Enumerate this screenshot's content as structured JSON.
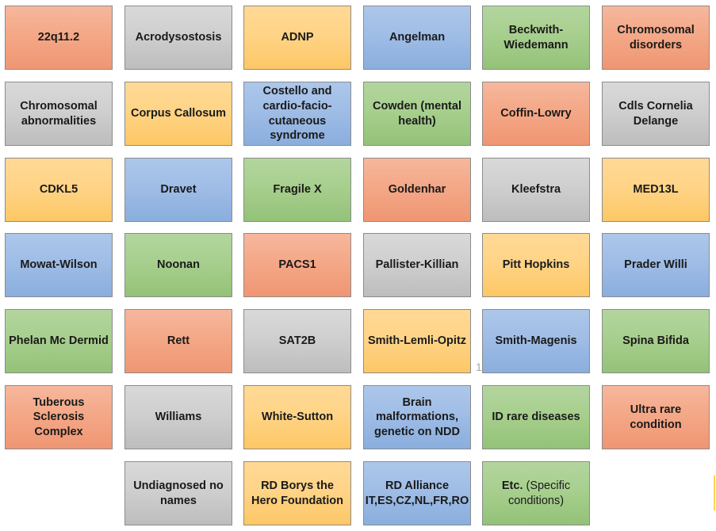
{
  "page_number": "1",
  "colors": {
    "salmon": "#f4a887",
    "gray": "#cfcfcf",
    "yellow": "#ffd487",
    "blue": "#9fbde6",
    "green": "#a7cf8e"
  },
  "tiles": [
    {
      "label": "22q11.2",
      "tone": "salmon"
    },
    {
      "label": "Acrodysostosis",
      "tone": "gray"
    },
    {
      "label": "ADNP",
      "tone": "yellow"
    },
    {
      "label": "Angelman",
      "tone": "blue"
    },
    {
      "label": "Beckwith-Wiedemann",
      "tone": "green"
    },
    {
      "label": "Chromosomal disorders",
      "tone": "salmon"
    },
    {
      "label": "Chromosomal abnormalities",
      "tone": "gray"
    },
    {
      "label": "Corpus Callosum",
      "tone": "yellow"
    },
    {
      "label": "Costello and cardio-facio-cutaneous syndrome",
      "tone": "blue"
    },
    {
      "label": "Cowden (mental health)",
      "tone": "green"
    },
    {
      "label": "Coffin-Lowry",
      "tone": "salmon"
    },
    {
      "label": "Cdls Cornelia Delange",
      "tone": "gray"
    },
    {
      "label": "CDKL5",
      "tone": "yellow"
    },
    {
      "label": "Dravet",
      "tone": "blue"
    },
    {
      "label": "Fragile X",
      "tone": "green"
    },
    {
      "label": "Goldenhar",
      "tone": "salmon"
    },
    {
      "label": "Kleefstra",
      "tone": "gray"
    },
    {
      "label": "MED13L",
      "tone": "yellow"
    },
    {
      "label": "Mowat-Wilson",
      "tone": "blue"
    },
    {
      "label": "Noonan",
      "tone": "green"
    },
    {
      "label": "PACS1",
      "tone": "salmon"
    },
    {
      "label": "Pallister-Killian",
      "tone": "gray"
    },
    {
      "label": "Pitt Hopkins",
      "tone": "yellow"
    },
    {
      "label": "Prader Willi",
      "tone": "blue"
    },
    {
      "label": "Phelan Mc Dermid",
      "tone": "green"
    },
    {
      "label": "Rett",
      "tone": "salmon"
    },
    {
      "label": "SAT2B",
      "tone": "gray"
    },
    {
      "label": "Smith-Lemli-Opitz",
      "tone": "yellow"
    },
    {
      "label": "Smith-Magenis",
      "tone": "blue"
    },
    {
      "label": "Spina Bifida",
      "tone": "green"
    },
    {
      "label": "Tuberous Sclerosis Complex",
      "tone": "salmon"
    },
    {
      "label": "Williams",
      "tone": "gray"
    },
    {
      "label": "White-Sutton",
      "tone": "yellow"
    },
    {
      "label": "Brain malformations, genetic on NDD",
      "tone": "blue"
    },
    {
      "label": "ID rare diseases",
      "tone": "green"
    },
    {
      "label": "Ultra rare condition",
      "tone": "salmon"
    },
    {
      "label": "Undiagnosed no names",
      "tone": "gray"
    },
    {
      "label": "RD Borys the Hero Foundation",
      "tone": "yellow"
    },
    {
      "label": "RD Alliance IT,ES,CZ,NL,FR,RO",
      "tone": "blue"
    },
    {
      "label": "Etc.",
      "note": " (Specific conditions)",
      "tone": "green"
    }
  ]
}
